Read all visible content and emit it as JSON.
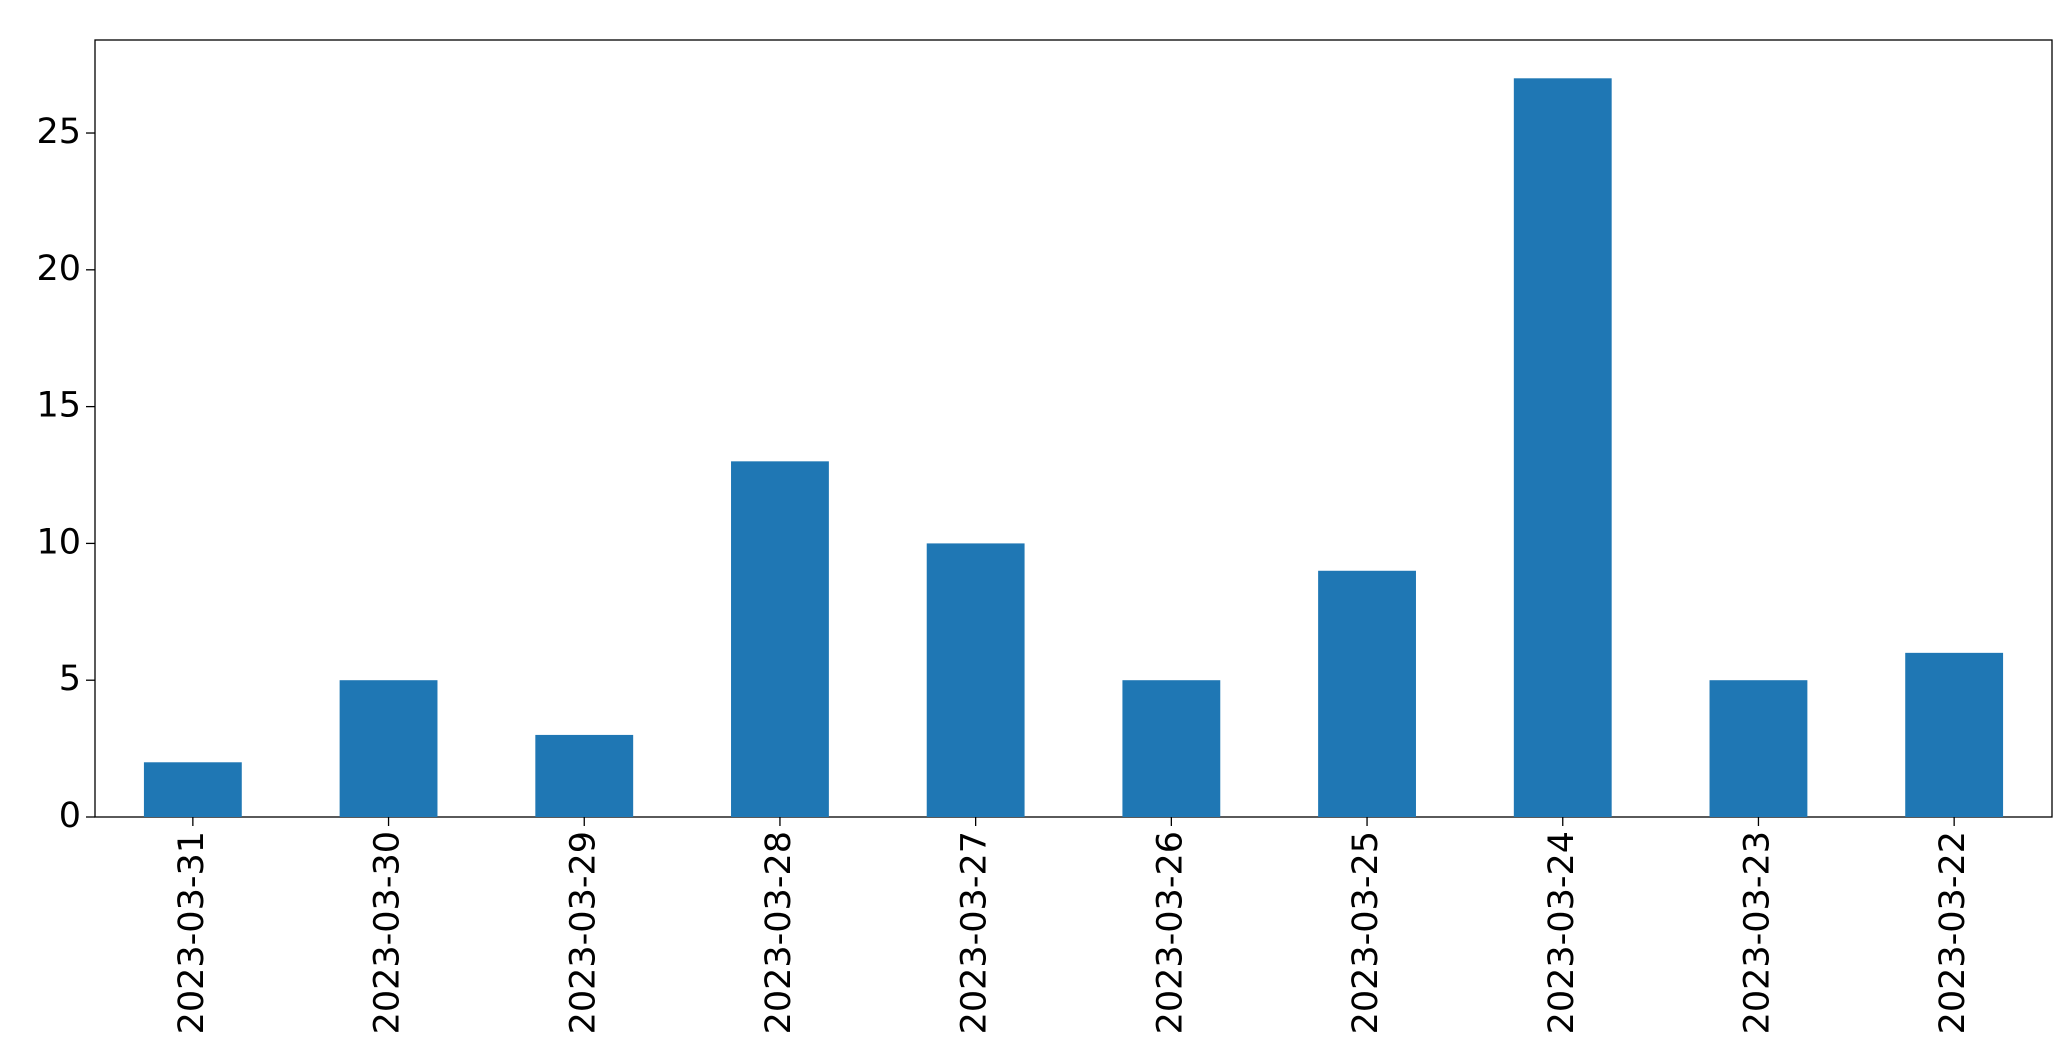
{
  "chart_data": {
    "type": "bar",
    "categories": [
      "2023-03-31",
      "2023-03-30",
      "2023-03-29",
      "2023-03-28",
      "2023-03-27",
      "2023-03-26",
      "2023-03-25",
      "2023-03-24",
      "2023-03-23",
      "2023-03-22"
    ],
    "values": [
      2,
      5,
      3,
      13,
      10,
      5,
      9,
      27,
      5,
      6
    ],
    "color": "#1f77b4",
    "ylim": [
      0,
      28.4
    ],
    "yticks": [
      0,
      5,
      10,
      15,
      20,
      25
    ],
    "grid": false
  }
}
